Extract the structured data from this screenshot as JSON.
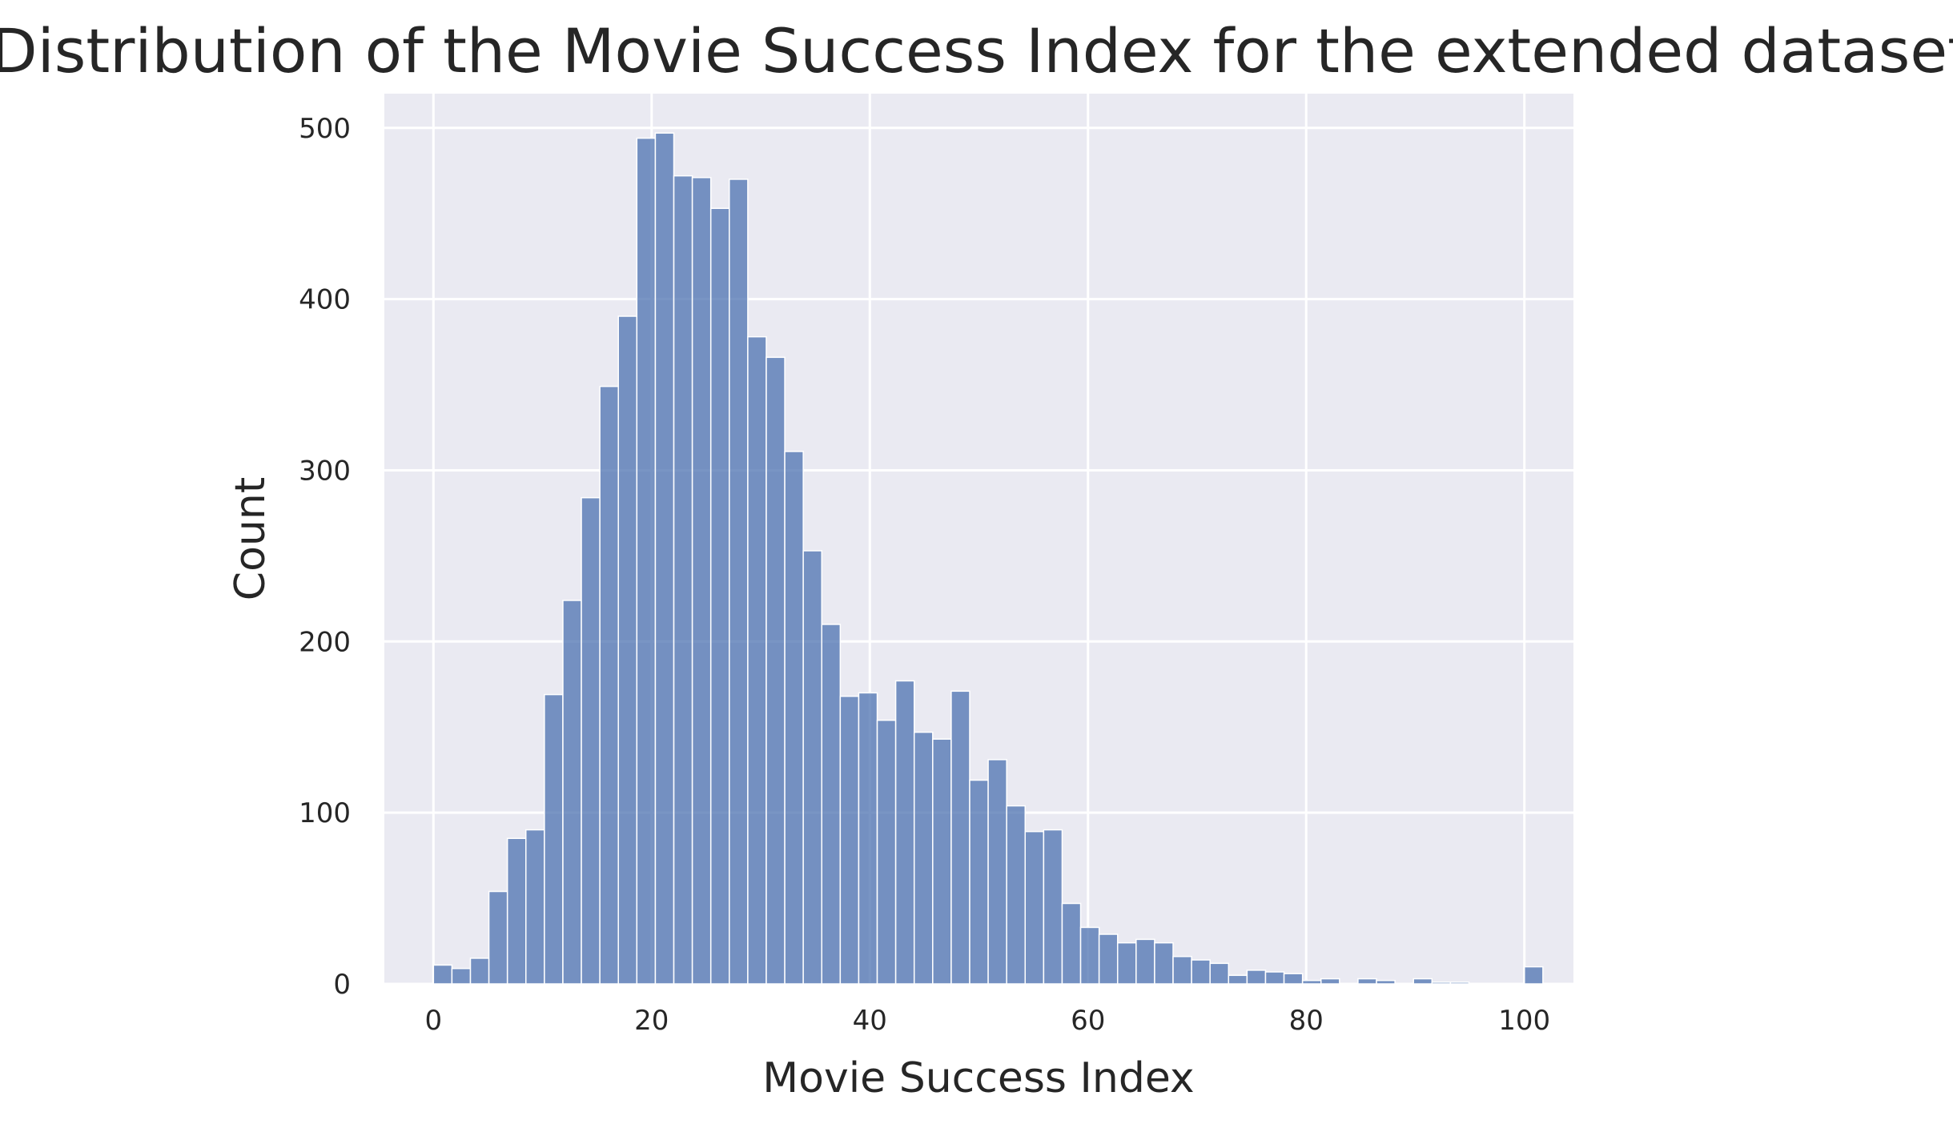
{
  "chart_data": {
    "type": "bar",
    "title": "Distribution of the Movie Success Index for the extended dataset",
    "xlabel": "Movie Success Index",
    "ylabel": "Count",
    "xlim": [
      -4.5,
      104.5
    ],
    "ylim": [
      0,
      520
    ],
    "xticks": [
      0,
      20,
      40,
      60,
      80,
      100
    ],
    "yticks": [
      0,
      100,
      200,
      300,
      400,
      500
    ],
    "grid": true,
    "legend": "none",
    "bin_start": 0,
    "bin_width": 1.695,
    "values": [
      11,
      9,
      15,
      54,
      85,
      90,
      169,
      224,
      284,
      349,
      390,
      494,
      497,
      472,
      471,
      453,
      470,
      378,
      366,
      311,
      253,
      210,
      168,
      170,
      154,
      177,
      147,
      143,
      171,
      119,
      131,
      104,
      89,
      90,
      47,
      33,
      29,
      24,
      26,
      24,
      16,
      14,
      12,
      5,
      8,
      7,
      6,
      2,
      3,
      0,
      3,
      2,
      0,
      3,
      1,
      1,
      0,
      0,
      0,
      10
    ],
    "colors": {
      "bar_fill": "#4c72b0",
      "bar_opacity": 0.75,
      "bar_edge": "#ffffff",
      "plot_background": "#eaeaf2",
      "grid": "#ffffff",
      "text": "#262626"
    }
  }
}
